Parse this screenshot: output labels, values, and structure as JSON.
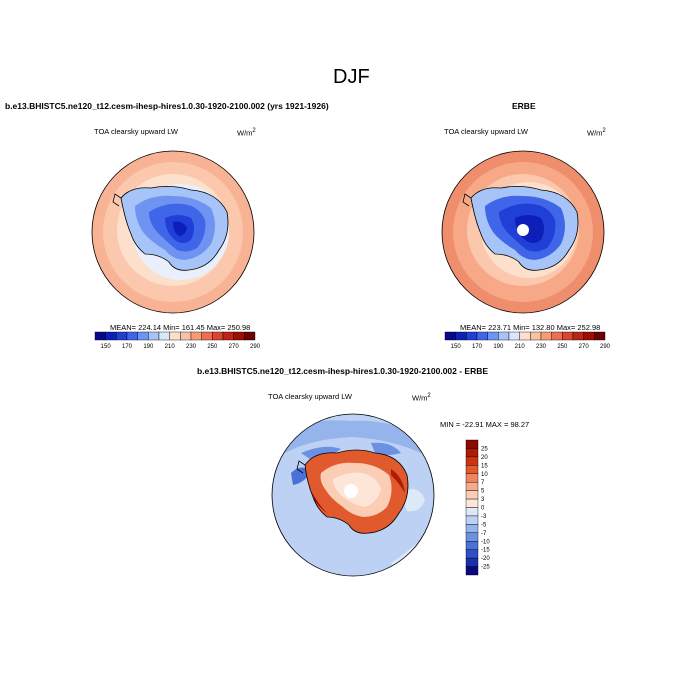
{
  "page_title": "DJF",
  "panels": {
    "model": {
      "header": "b.e13.BHISTC5.ne120_t12.cesm-ihesp-hires1.0.30-1920-2100.002 (yrs 1921-1926)",
      "variable": "TOA clearsky upward LW",
      "units_base": "W/m",
      "units_exp": "2",
      "stats": "MEAN= 224.14  Min= 161.45  Max= 250.98"
    },
    "obs": {
      "header": "ERBE",
      "variable": "TOA clearsky upward LW",
      "units_base": "W/m",
      "units_exp": "2",
      "stats": "MEAN= 223.71  Min= 132.80  Max= 252.98"
    },
    "diff": {
      "header": "b.e13.BHISTC5.ne120_t12.cesm-ihesp-hires1.0.30-1920-2100.002 - ERBE",
      "variable": "TOA clearsky upward LW",
      "units_base": "W/m",
      "units_exp": "2",
      "stats": "MIN = -22.91 MAX =  98.27"
    }
  },
  "colorbar_abs": {
    "labels": [
      "150",
      "170",
      "190",
      "210",
      "230",
      "250",
      "270",
      "290"
    ],
    "colors": [
      "#08088c",
      "#0d1fb8",
      "#1f3fd6",
      "#3f66e8",
      "#6f93f0",
      "#a6c4f7",
      "#d9e6fb",
      "#fde0cc",
      "#fbc1a4",
      "#f59b7a",
      "#ea7052",
      "#d8472e",
      "#bd2414",
      "#9a0e06",
      "#6e0000"
    ]
  },
  "colorbar_diff": {
    "labels": [
      "25",
      "20",
      "15",
      "10",
      "7",
      "5",
      "3",
      "0",
      "-3",
      "-5",
      "-7",
      "-10",
      "-15",
      "-20",
      "-25"
    ],
    "colors": [
      "#8c0a00",
      "#b01a05",
      "#cc3310",
      "#e05a2e",
      "#ee8460",
      "#f6ab8c",
      "#fbcdb5",
      "#fde6d8",
      "#dde9f9",
      "#bcd1f4",
      "#95b4ec",
      "#6c91e2",
      "#4b70d6",
      "#2f4fc7",
      "#1b2fae",
      "#0a0a7f"
    ]
  }
}
